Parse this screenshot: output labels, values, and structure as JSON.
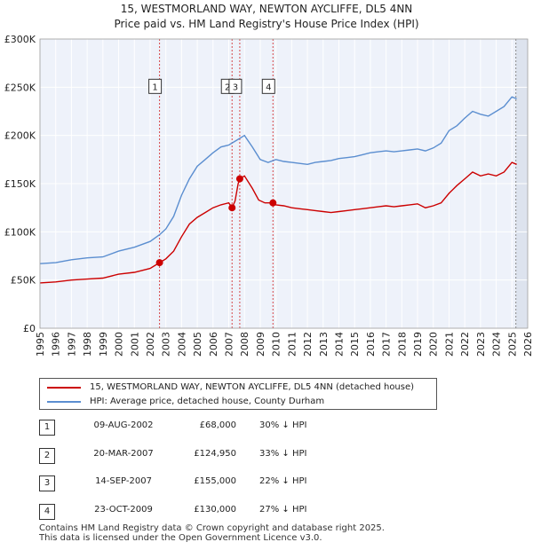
{
  "chart_data": {
    "type": "line",
    "title": "15, WESTMORLAND WAY, NEWTON AYCLIFFE, DL5 4NN",
    "subtitle": "Price paid vs. HM Land Registry's House Price Index (HPI)",
    "xlim": [
      1995,
      2026
    ],
    "ylim": [
      0,
      300000
    ],
    "x_ticks": [
      "1995",
      "1996",
      "1997",
      "1998",
      "1999",
      "2000",
      "2001",
      "2002",
      "2003",
      "2004",
      "2005",
      "2006",
      "2007",
      "2008",
      "2009",
      "2010",
      "2011",
      "2012",
      "2013",
      "2014",
      "2015",
      "2016",
      "2017",
      "2018",
      "2019",
      "2020",
      "2021",
      "2022",
      "2023",
      "2024",
      "2025",
      "2026"
    ],
    "y_ticks": [
      {
        "value": 0,
        "label": "£0"
      },
      {
        "value": 50000,
        "label": "£50K"
      },
      {
        "value": 100000,
        "label": "£100K"
      },
      {
        "value": 150000,
        "label": "£150K"
      },
      {
        "value": 200000,
        "label": "£200K"
      },
      {
        "value": 250000,
        "label": "£250K"
      },
      {
        "value": 300000,
        "label": "£300K"
      }
    ],
    "shaded_range": [
      2025.25,
      2026
    ],
    "series": [
      {
        "name": "15, WESTMORLAND WAY, NEWTON AYCLIFFE, DL5 4NN (detached house)",
        "color": "#cc0000",
        "x": [
          1995.0,
          1996.0,
          1997.0,
          1998.0,
          1999.0,
          2000.0,
          2001.0,
          2002.0,
          2002.6,
          2003.0,
          2003.5,
          2004.0,
          2004.5,
          2005.0,
          2005.5,
          2006.0,
          2006.5,
          2007.0,
          2007.21,
          2007.4,
          2007.6,
          2007.7,
          2008.0,
          2008.5,
          2008.9,
          2009.3,
          2009.81,
          2010.0,
          2010.5,
          2011.0,
          2011.5,
          2012.0,
          2012.5,
          2013.0,
          2013.5,
          2014.0,
          2014.5,
          2015.0,
          2015.5,
          2016.0,
          2016.5,
          2017.0,
          2017.5,
          2018.0,
          2018.5,
          2019.0,
          2019.5,
          2020.0,
          2020.5,
          2021.0,
          2021.5,
          2022.0,
          2022.5,
          2023.0,
          2023.5,
          2024.0,
          2024.5,
          2025.0,
          2025.3
        ],
        "y": [
          47000,
          48000,
          50000,
          51000,
          52000,
          56000,
          58000,
          62000,
          68000,
          72000,
          80000,
          95000,
          108000,
          115000,
          120000,
          125000,
          128000,
          130000,
          124950,
          132000,
          150000,
          155000,
          158000,
          145000,
          133000,
          130000,
          130000,
          128000,
          127000,
          125000,
          124000,
          123000,
          122000,
          121000,
          120000,
          121000,
          122000,
          123000,
          124000,
          125000,
          126000,
          127000,
          126000,
          127000,
          128000,
          129000,
          125000,
          127000,
          130000,
          140000,
          148000,
          155000,
          162000,
          158000,
          160000,
          158000,
          162000,
          172000,
          170000
        ]
      },
      {
        "name": "HPI: Average price, detached house, County Durham",
        "color": "#5b8ed0",
        "x": [
          1995.0,
          1996.0,
          1997.0,
          1998.0,
          1999.0,
          2000.0,
          2001.0,
          2002.0,
          2002.6,
          2003.0,
          2003.5,
          2004.0,
          2004.5,
          2005.0,
          2005.5,
          2006.0,
          2006.5,
          2007.0,
          2007.5,
          2008.0,
          2008.5,
          2009.0,
          2009.5,
          2010.0,
          2010.5,
          2011.0,
          2011.5,
          2012.0,
          2012.5,
          2013.0,
          2013.5,
          2014.0,
          2014.5,
          2015.0,
          2015.5,
          2016.0,
          2016.5,
          2017.0,
          2017.5,
          2018.0,
          2018.5,
          2019.0,
          2019.5,
          2020.0,
          2020.5,
          2021.0,
          2021.5,
          2022.0,
          2022.5,
          2023.0,
          2023.5,
          2024.0,
          2024.5,
          2025.0,
          2025.3
        ],
        "y": [
          67000,
          68000,
          71000,
          73000,
          74000,
          80000,
          84000,
          90000,
          97000,
          103000,
          116000,
          138000,
          155000,
          168000,
          175000,
          182000,
          188000,
          190000,
          195000,
          200000,
          188000,
          175000,
          172000,
          175000,
          173000,
          172000,
          171000,
          170000,
          172000,
          173000,
          174000,
          176000,
          177000,
          178000,
          180000,
          182000,
          183000,
          184000,
          183000,
          184000,
          185000,
          186000,
          184000,
          187000,
          192000,
          205000,
          210000,
          218000,
          225000,
          222000,
          220000,
          225000,
          230000,
          240000,
          238000
        ]
      }
    ],
    "sales": [
      {
        "label": "1",
        "x": 2002.6,
        "y": 68000,
        "marker_label_price": 250000
      },
      {
        "label": "2",
        "x": 2007.21,
        "y": 124950,
        "marker_label_price": 250000
      },
      {
        "label": "3",
        "x": 2007.7,
        "y": 155000,
        "marker_label_price": 250000
      },
      {
        "label": "4",
        "x": 2009.81,
        "y": 130000,
        "marker_label_price": 250000
      }
    ]
  },
  "legend": {
    "property_label": "15, WESTMORLAND WAY, NEWTON AYCLIFFE, DL5 4NN (detached house)",
    "hpi_label": "HPI: Average price, detached house, County Durham",
    "property_color": "#cc0000",
    "hpi_color": "#5b8ed0"
  },
  "sales_table": [
    {
      "num": "1",
      "date": "09-AUG-2002",
      "price": "£68,000",
      "hpi": "30% ↓ HPI"
    },
    {
      "num": "2",
      "date": "20-MAR-2007",
      "price": "£124,950",
      "hpi": "33% ↓ HPI"
    },
    {
      "num": "3",
      "date": "14-SEP-2007",
      "price": "£155,000",
      "hpi": "22% ↓ HPI"
    },
    {
      "num": "4",
      "date": "23-OCT-2009",
      "price": "£130,000",
      "hpi": "27% ↓ HPI"
    }
  ],
  "footer": {
    "line1": "Contains HM Land Registry data © Crown copyright and database right 2025.",
    "line2": "This data is licensed under the Open Government Licence v3.0."
  }
}
